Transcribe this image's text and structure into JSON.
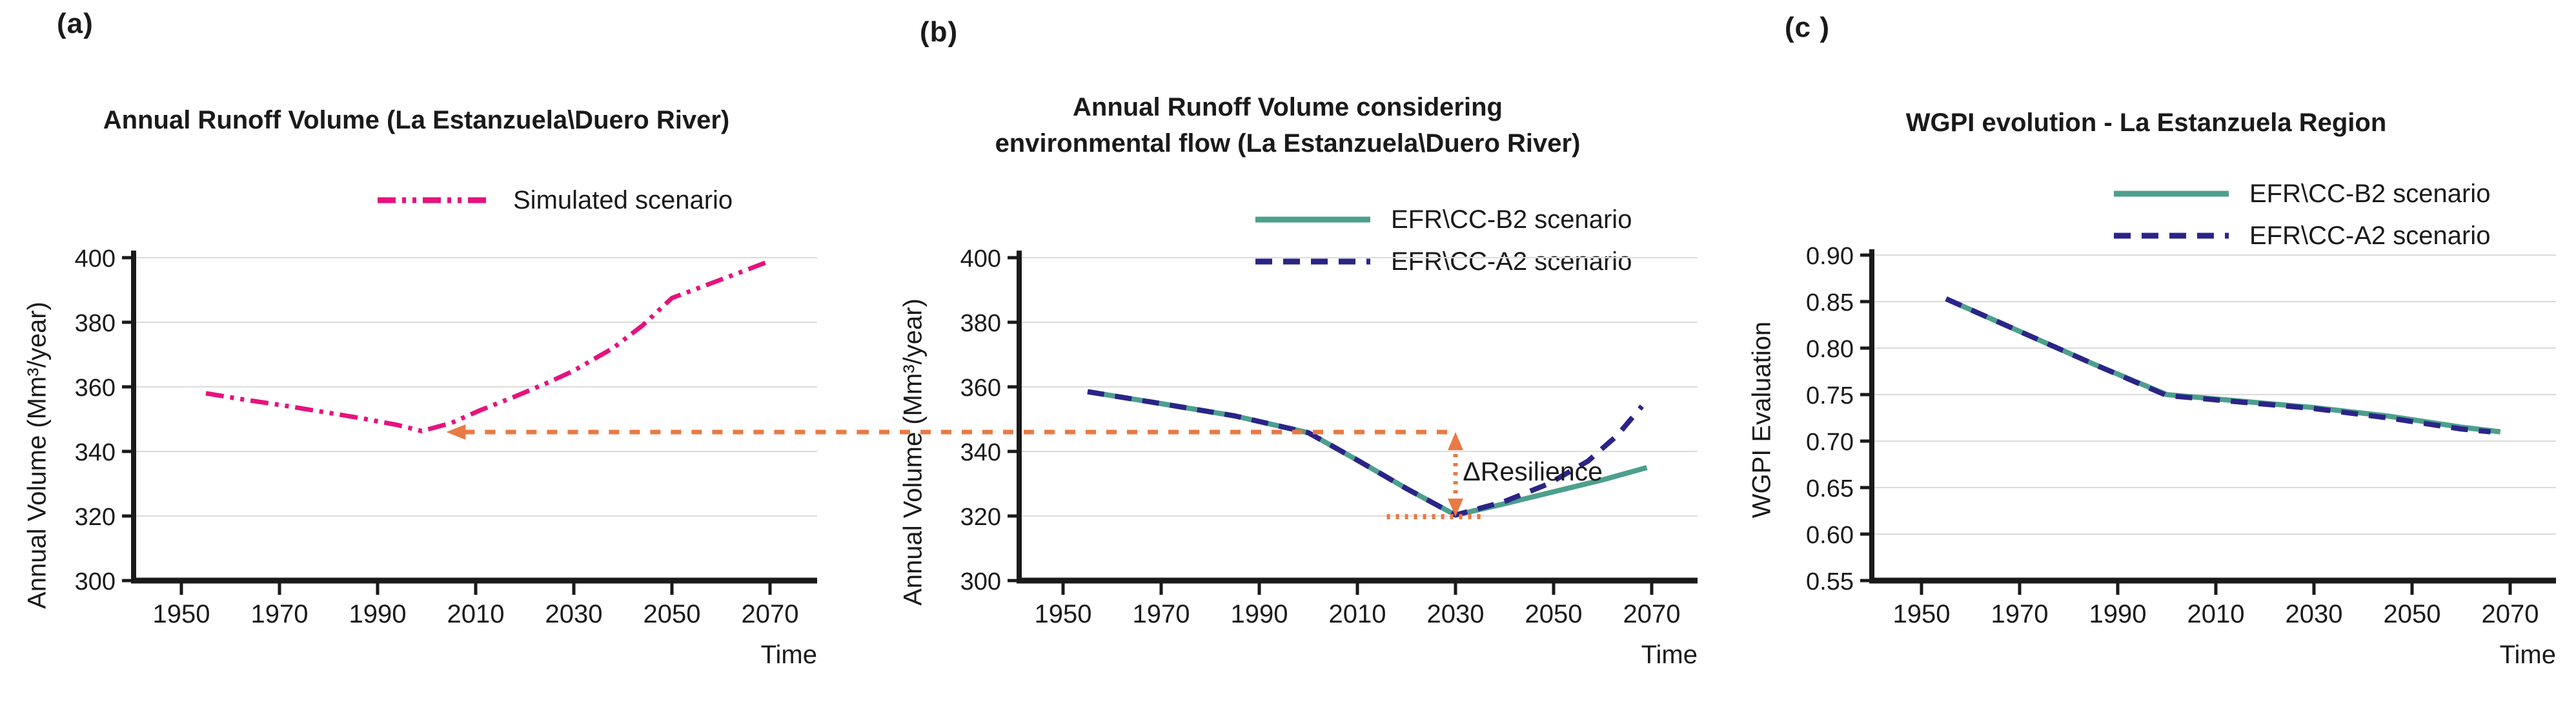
{
  "figure": {
    "background": "#FFFFFF",
    "colors": {
      "pink": "#E6127E",
      "teal": "#4D9F8D",
      "navy": "#2B2488",
      "orange": "#E97A44",
      "grid": "#DBDBDB",
      "axis": "#1A1A1A"
    }
  },
  "chart_data": [
    {
      "type": "line",
      "panel_label": "(a)",
      "title_lines": [
        "Annual Runoff Volume (La Estanzuela\\Duero River)"
      ],
      "xlabel": "Time",
      "ylabel": "Annual Volume  (Mm³/year)",
      "xlim": [
        1940,
        2080
      ],
      "ylim": [
        300,
        400
      ],
      "grid": "horizontal",
      "legend_position": "top",
      "xtick_values": [
        1950,
        1970,
        1990,
        2010,
        2030,
        2050,
        2070
      ],
      "xtick_labels": [
        "1950",
        "1970",
        "1990",
        "2010",
        "2030",
        "2050",
        "2070"
      ],
      "ytick_values": [
        300,
        320,
        340,
        360,
        380,
        400
      ],
      "ytick_labels": [
        "300",
        "320",
        "340",
        "360",
        "380",
        "400"
      ],
      "series": [
        {
          "name": "Simulated scenario",
          "color": "#E6127E",
          "dash": "dashdotdot",
          "width": 7,
          "x": [
            1955,
            1963,
            1971,
            1979,
            1987,
            1994,
            1999,
            2005,
            2011,
            2018,
            2025,
            2030,
            2038,
            2044,
            2050,
            2057,
            2064,
            2070
          ],
          "y": [
            358,
            356,
            354.2,
            352.2,
            350.2,
            348.2,
            346.3,
            348.8,
            352.8,
            357,
            361.5,
            365,
            372,
            379,
            387.5,
            391.5,
            395.5,
            399
          ]
        }
      ],
      "annotations": {
        "ref_line": {
          "y": 346,
          "from_year": 2004,
          "to_edge": true,
          "arrow": "left",
          "color": "#E97A44"
        }
      }
    },
    {
      "type": "line",
      "panel_label": "(b)",
      "title_lines": [
        "Annual Runoff Volume considering",
        "environmental flow (La Estanzuela\\Duero River)"
      ],
      "xlabel": "Time",
      "ylabel": "Annual Volume  (Mm³/year)",
      "xlim": [
        1940,
        2080
      ],
      "ylim": [
        300,
        400
      ],
      "grid": "horizontal",
      "legend_position": "top-right",
      "xtick_values": [
        1950,
        1970,
        1990,
        2010,
        2030,
        2050,
        2070
      ],
      "xtick_labels": [
        "1950",
        "1970",
        "1990",
        "2010",
        "2030",
        "2050",
        "2070"
      ],
      "ytick_values": [
        300,
        320,
        340,
        360,
        380,
        400
      ],
      "ytick_labels": [
        "300",
        "320",
        "340",
        "360",
        "380",
        "400"
      ],
      "series": [
        {
          "name": "EFR\\CC-B2 scenario",
          "color": "#4D9F8D",
          "dash": "solid",
          "width": 8,
          "x": [
            1955,
            1970,
            1985,
            2000,
            2010,
            2020,
            2030,
            2040,
            2050,
            2060,
            2069
          ],
          "y": [
            358.5,
            354.8,
            351,
            345.8,
            337.3,
            328.5,
            320.3,
            323.8,
            327.5,
            331.2,
            335
          ]
        },
        {
          "name": "EFR\\CC-A2 scenario",
          "color": "#2B2488",
          "dash": "dash",
          "width": 8,
          "x": [
            1955,
            1970,
            1985,
            2000,
            2010,
            2020,
            2030,
            2040,
            2049,
            2057,
            2063,
            2068
          ],
          "y": [
            358.5,
            354.8,
            351,
            345.8,
            337.3,
            328.5,
            320.3,
            324.5,
            330,
            337,
            345,
            354
          ]
        }
      ],
      "annotations": {
        "ref_line": {
          "y": 346,
          "to_year": 2030,
          "from_edge": true,
          "color": "#E97A44"
        },
        "resilience": {
          "label": "ΔResilience",
          "arrow_year": 2030,
          "top_value": 346,
          "bottom_value": 321,
          "base_value": 319.8,
          "base_from_year": 2016,
          "base_to_year": 2036,
          "label_year": 2031.5,
          "label_value": 331,
          "color": "#E97A44"
        }
      }
    },
    {
      "type": "line",
      "panel_label": "(c )",
      "title_lines": [
        "WGPI evolution - La Estanzuela Region"
      ],
      "xlabel": "Time",
      "ylabel": "WGPI Evaluation",
      "xlim": [
        1940,
        2080
      ],
      "ylim": [
        0.55,
        0.9
      ],
      "grid": "horizontal",
      "legend_position": "top-right",
      "xtick_values": [
        1950,
        1970,
        1990,
        2010,
        2030,
        2050,
        2070
      ],
      "xtick_labels": [
        "1950",
        "1970",
        "1990",
        "2010",
        "2030",
        "2050",
        "2070"
      ],
      "ytick_values": [
        0.55,
        0.6,
        0.65,
        0.7,
        0.75,
        0.8,
        0.85,
        0.9
      ],
      "ytick_labels": [
        "0.55",
        "0.60",
        "0.65",
        "0.70",
        "0.75",
        "0.80",
        "0.85",
        "0.90"
      ],
      "series": [
        {
          "name": "EFR\\CC-B2 scenario",
          "color": "#4D9F8D",
          "dash": "solid",
          "width": 8,
          "x": [
            1955,
            1970,
            1985,
            2000,
            2015,
            2030,
            2045,
            2060,
            2068
          ],
          "y": [
            0.853,
            0.818,
            0.783,
            0.75,
            0.743,
            0.736,
            0.727,
            0.715,
            0.71
          ]
        },
        {
          "name": "EFR\\CC-A2 scenario",
          "color": "#2B2488",
          "dash": "dash",
          "width": 8,
          "x": [
            1955,
            1970,
            1985,
            2000,
            2015,
            2030,
            2045,
            2060,
            2066
          ],
          "y": [
            0.853,
            0.818,
            0.783,
            0.749,
            0.742,
            0.735,
            0.725,
            0.713,
            0.71
          ]
        }
      ],
      "annotations": {}
    }
  ]
}
